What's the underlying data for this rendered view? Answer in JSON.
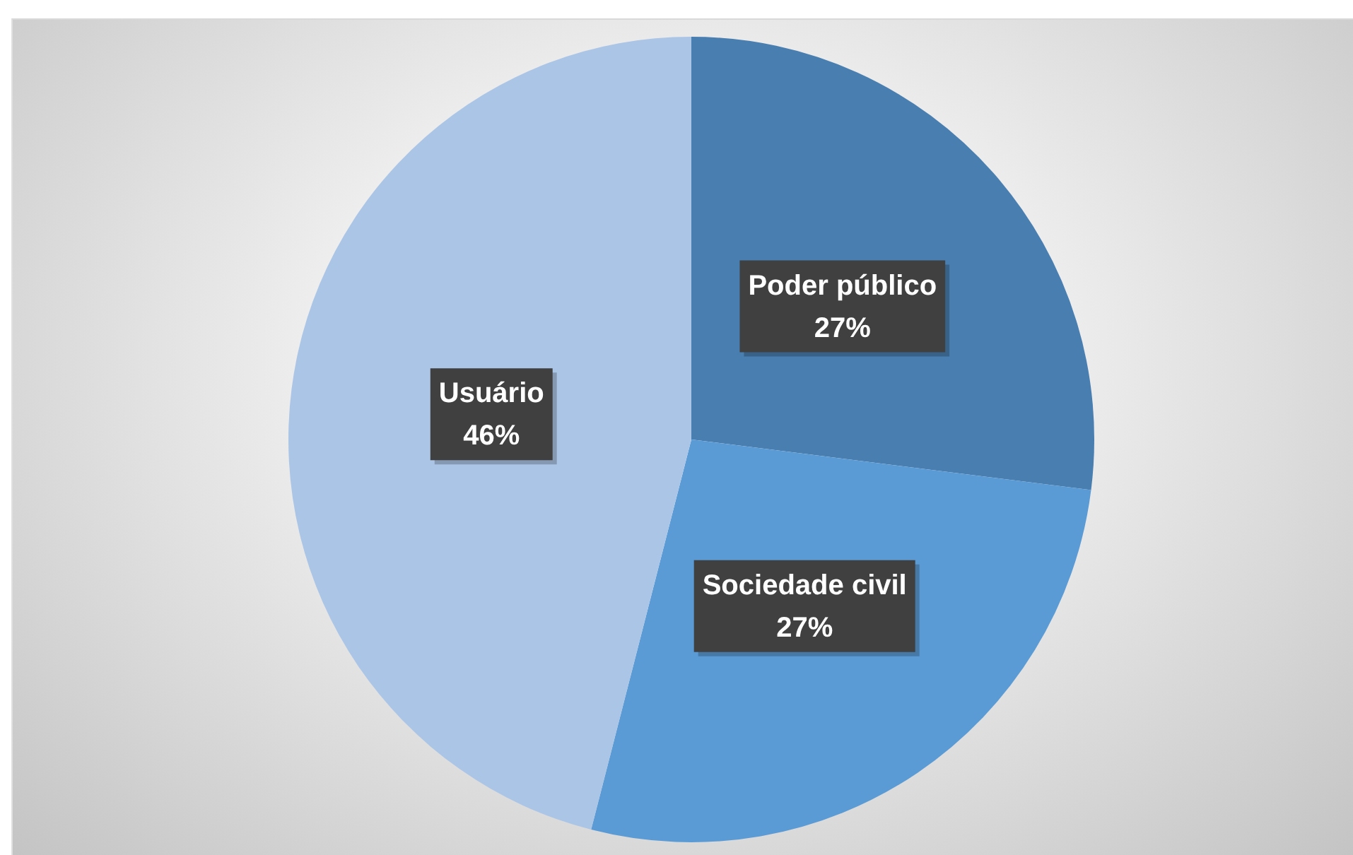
{
  "chart_data": {
    "type": "pie",
    "categories": [
      "Poder público",
      "Sociedade civil",
      "Usuário"
    ],
    "values": [
      27,
      27,
      46
    ],
    "value_labels": [
      "27%",
      "27%",
      "46%"
    ],
    "colors": [
      "#497eb0",
      "#5a9bd5",
      "#abc5e6"
    ]
  }
}
